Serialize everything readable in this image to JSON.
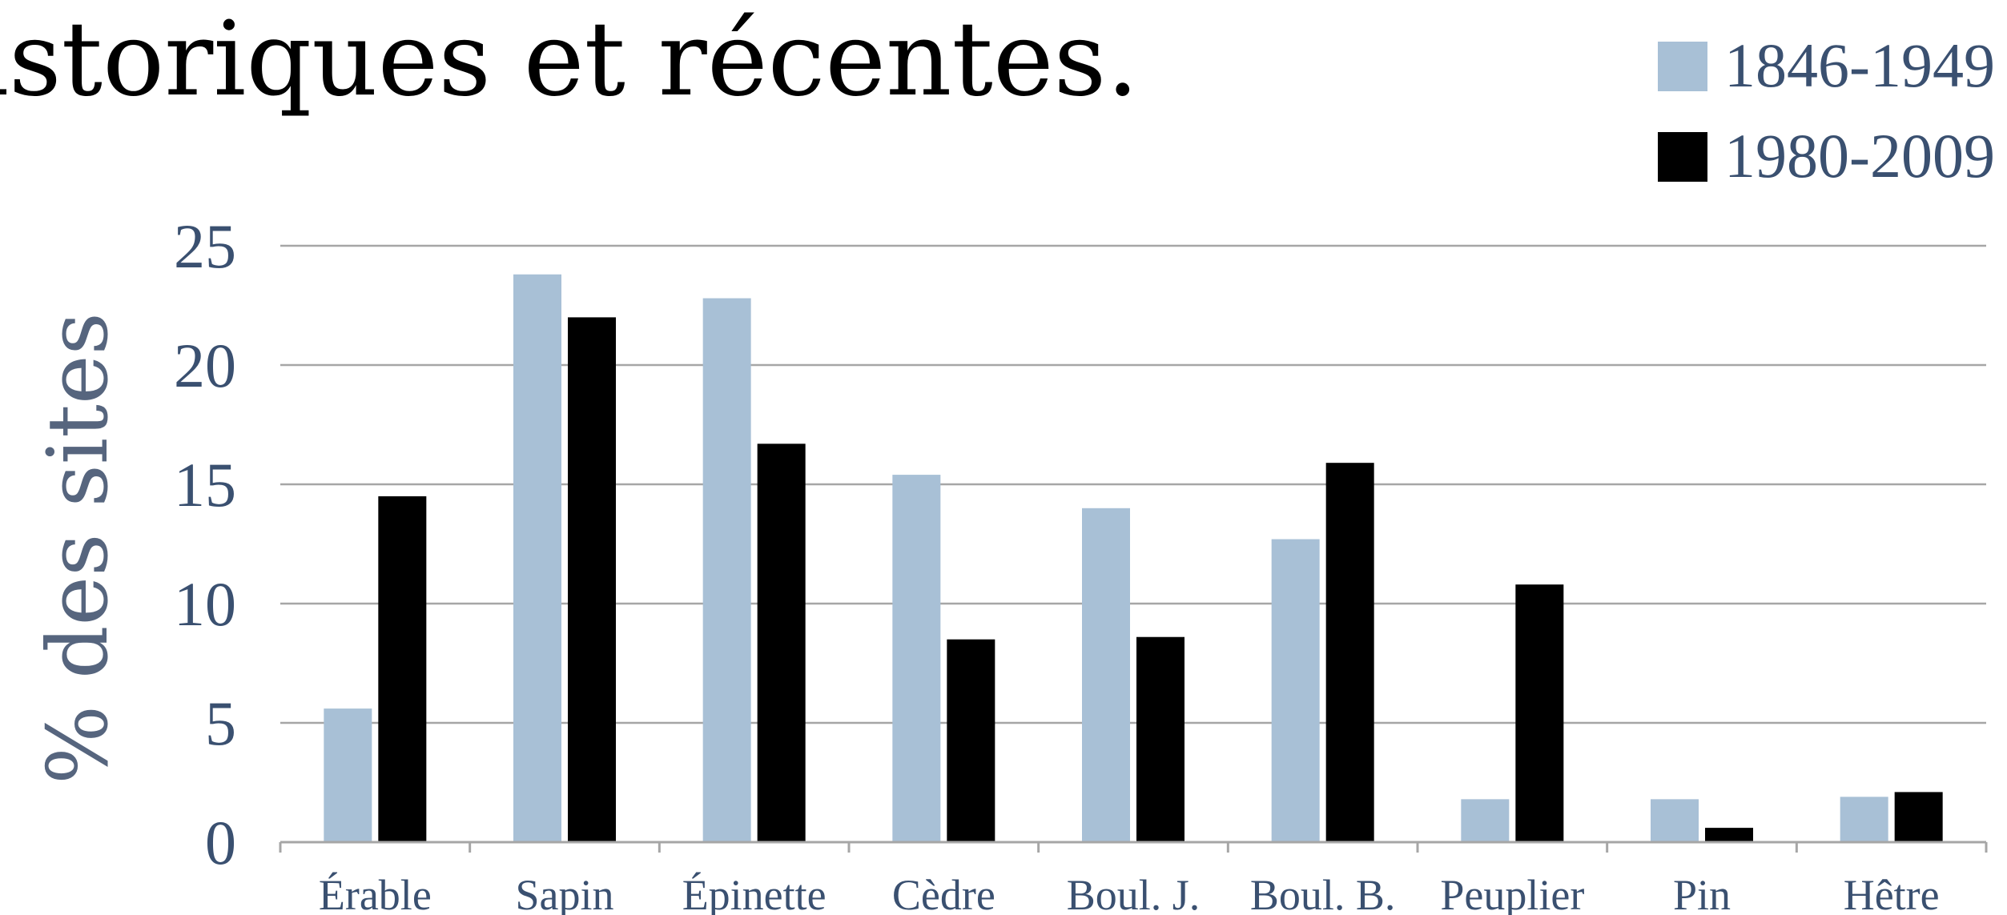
{
  "chart_data": {
    "type": "bar",
    "title": "istoriques et récentes.",
    "ylabel": "% des sites",
    "xlabel": "",
    "categories": [
      "Érable",
      "Sapin",
      "Épinette",
      "Cèdre",
      "Boul. J.",
      "Boul. B.",
      "Peuplier",
      "Pin",
      "Hêtre"
    ],
    "series": [
      {
        "name": "1846-1949",
        "color": "#a8c0d6",
        "values": [
          5.6,
          23.8,
          22.8,
          15.4,
          14.0,
          12.7,
          1.8,
          1.8,
          1.9
        ]
      },
      {
        "name": "1980-2009",
        "color": "#000000",
        "values": [
          14.5,
          22.0,
          16.7,
          8.5,
          8.6,
          15.9,
          10.8,
          0.6,
          2.1
        ]
      }
    ],
    "ylim": [
      0,
      25
    ],
    "yticks": [
      0,
      5,
      10,
      15,
      20,
      25
    ],
    "grid": true,
    "legend": "top-right"
  },
  "colors": {
    "text": "#3a5070",
    "grid": "#a6a6a6"
  }
}
